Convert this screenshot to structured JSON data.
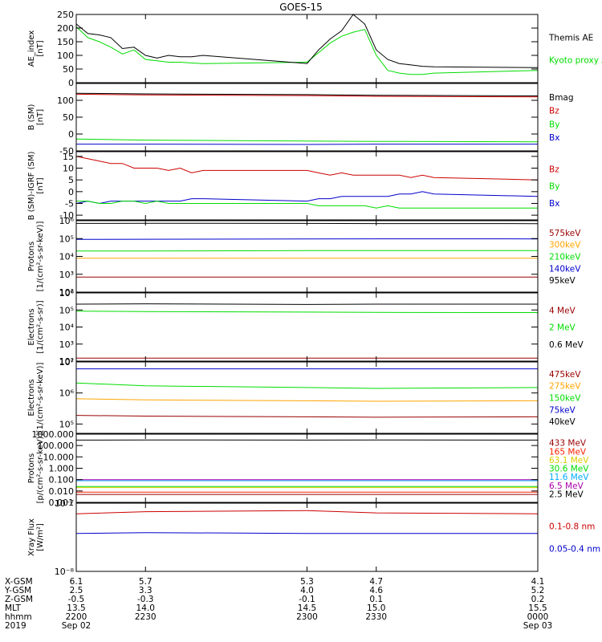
{
  "title": "GOES-15",
  "chart_data": [
    {
      "type": "line",
      "panel": "ae",
      "ylabel": [
        "AE_index",
        "[nT]"
      ],
      "ylim": [
        0,
        250
      ],
      "yticks": [
        0,
        50,
        100,
        150,
        200,
        250
      ],
      "ytick_labels": [
        "0",
        "50",
        "100",
        "150",
        "200",
        "250"
      ],
      "scale": "linear",
      "x": [
        2200,
        2205,
        2210,
        2215,
        2220,
        2225,
        2230,
        2235,
        2240,
        2245,
        2250,
        2255,
        2300,
        2305,
        2310,
        2315,
        2320,
        2325,
        2330,
        2335,
        2340,
        2345,
        2350,
        2355,
        2400
      ],
      "series": [
        {
          "name": "Kyoto proxy AE",
          "color": "#00dd00",
          "values": [
            205,
            165,
            150,
            130,
            105,
            120,
            85,
            80,
            75,
            75,
            72,
            70,
            75,
            110,
            145,
            170,
            185,
            195,
            100,
            45,
            35,
            30,
            30,
            35,
            45
          ]
        },
        {
          "name": "Themis AE",
          "color": "#000000",
          "values": [
            215,
            180,
            175,
            165,
            125,
            130,
            100,
            90,
            100,
            95,
            95,
            100,
            70,
            120,
            160,
            190,
            255,
            215,
            120,
            85,
            70,
            65,
            60,
            58,
            55
          ]
        }
      ]
    },
    {
      "type": "line",
      "panel": "bsm",
      "ylabel": [
        "B (SM)",
        "[nT]"
      ],
      "ylim": [
        -50,
        150
      ],
      "yticks": [
        -50,
        0,
        50,
        100
      ],
      "ytick_labels": [
        "-50",
        "0",
        "50",
        "100"
      ],
      "scale": "linear",
      "x": [
        2200,
        2230,
        2300,
        2330,
        2400
      ],
      "series": [
        {
          "name": "Bx",
          "color": "#0000cc",
          "values": [
            -30,
            -30,
            -31,
            -30,
            -30
          ]
        },
        {
          "name": "By",
          "color": "#00dd00",
          "values": [
            -15,
            -18,
            -21,
            -22,
            -23
          ]
        },
        {
          "name": "Bz",
          "color": "#cc0000",
          "values": [
            118,
            116,
            114,
            112,
            110
          ]
        },
        {
          "name": "Bmag",
          "color": "#000000",
          "values": [
            121,
            119,
            117,
            115,
            113
          ]
        }
      ]
    },
    {
      "type": "line",
      "panel": "bigrf",
      "ylabel": [
        "B (SM)-IGRF (SM)",
        "[nT]"
      ],
      "ylim": [
        -12,
        17
      ],
      "yticks": [
        -10,
        -5,
        0,
        5,
        10,
        15
      ],
      "ytick_labels": [
        "-10",
        "-5",
        "0",
        "5",
        "10",
        "15"
      ],
      "scale": "linear",
      "x": [
        2200,
        2205,
        2210,
        2215,
        2220,
        2225,
        2230,
        2235,
        2240,
        2245,
        2250,
        2255,
        2300,
        2305,
        2310,
        2315,
        2320,
        2325,
        2330,
        2335,
        2340,
        2345,
        2350,
        2355,
        2400
      ],
      "series": [
        {
          "name": "Bx",
          "color": "#0000cc",
          "values": [
            -5,
            -4,
            -5,
            -4,
            -4,
            -4,
            -4,
            -4,
            -4,
            -4,
            -3,
            -3,
            -4,
            -3,
            -3,
            -2,
            -2,
            -2,
            -2,
            -2,
            -1,
            -1,
            0,
            -1,
            -2
          ]
        },
        {
          "name": "By",
          "color": "#00dd00",
          "values": [
            -4,
            -4,
            -5,
            -5,
            -4,
            -4,
            -5,
            -4,
            -5,
            -5,
            -5,
            -5,
            -5,
            -6,
            -6,
            -6,
            -6,
            -6,
            -7,
            -6,
            -7,
            -7,
            -7,
            -7,
            -7
          ]
        },
        {
          "name": "Bz",
          "color": "#cc0000",
          "values": [
            15,
            14,
            13,
            12,
            12,
            10,
            10,
            10,
            9,
            10,
            8,
            9,
            9,
            8,
            7,
            8,
            7,
            7,
            7,
            7,
            7,
            6,
            7,
            6,
            5
          ]
        }
      ]
    },
    {
      "type": "line",
      "panel": "protons1",
      "ylabel": [
        "Protons",
        "[1/(cm²-s-sr-keV)]"
      ],
      "ylim": [
        100,
        1000000
      ],
      "yticks": [
        100,
        1000,
        10000,
        100000,
        1000000
      ],
      "ytick_labels": [
        "10²",
        "10³",
        "10⁴",
        "10⁵",
        "10⁶"
      ],
      "scale": "log",
      "x": [
        2200,
        2230,
        2300,
        2330,
        2400
      ],
      "series": [
        {
          "name": "95keV",
          "color": "#000000",
          "values": [
            700000,
            720000,
            700000,
            690000,
            680000
          ]
        },
        {
          "name": "140keV",
          "color": "#0000cc",
          "values": [
            90000,
            92000,
            95000,
            96000,
            95000
          ]
        },
        {
          "name": "210keV",
          "color": "#00dd00",
          "values": [
            20000,
            20000,
            21000,
            21000,
            21000
          ]
        },
        {
          "name": "300keV",
          "color": "#ffa500",
          "values": [
            8000,
            8000,
            8000,
            8000,
            8000
          ]
        },
        {
          "name": "575keV",
          "color": "#990000",
          "values": [
            700,
            700,
            700,
            700,
            700
          ]
        }
      ]
    },
    {
      "type": "line",
      "panel": "electrons1",
      "ylabel": [
        "Electrons",
        "[1/(cm²-s-sr)]"
      ],
      "ylim": [
        100,
        1000000
      ],
      "yticks": [
        100,
        1000,
        10000,
        100000,
        1000000
      ],
      "ytick_labels": [
        "10²",
        "10³",
        "10⁴",
        "10⁵",
        "10⁶"
      ],
      "scale": "log",
      "x": [
        2200,
        2230,
        2300,
        2330,
        2400
      ],
      "series": [
        {
          "name": "0.6 MeV",
          "color": "#000000",
          "values": [
            220000,
            230000,
            210000,
            220000,
            220000
          ]
        },
        {
          "name": "2 MeV",
          "color": "#00dd00",
          "values": [
            85000,
            80000,
            75000,
            72000,
            70000
          ]
        },
        {
          "name": "4 MeV",
          "color": "#990000",
          "values": [
            150,
            150,
            150,
            150,
            150
          ]
        }
      ]
    },
    {
      "type": "line",
      "panel": "electrons2",
      "ylabel": [
        "Electrons",
        "[1/(cm²-s-sr-keV)]"
      ],
      "ylim": [
        50000,
        10000000
      ],
      "yticks": [
        100000,
        1000000,
        10000000
      ],
      "ytick_labels": [
        "10⁵",
        "10⁶",
        "10⁷"
      ],
      "scale": "log",
      "x": [
        2200,
        2230,
        2300,
        2330,
        2400
      ],
      "series": [
        {
          "name": "40keV",
          "color": "#000000",
          "values": [
            12000000,
            12000000,
            12000000,
            12000000,
            12000000
          ]
        },
        {
          "name": "75keV",
          "color": "#0000cc",
          "values": [
            6000000,
            6000000,
            6000000,
            6000000,
            6000000
          ]
        },
        {
          "name": "150keV",
          "color": "#00dd00",
          "values": [
            2100000,
            1700000,
            1500000,
            1400000,
            1500000
          ]
        },
        {
          "name": "275keV",
          "color": "#ffa500",
          "values": [
            650000,
            600000,
            560000,
            540000,
            560000
          ]
        },
        {
          "name": "475keV",
          "color": "#990000",
          "values": [
            190000,
            180000,
            170000,
            165000,
            170000
          ]
        }
      ]
    },
    {
      "type": "line",
      "panel": "protons2",
      "ylabel": [
        "Protons",
        "[p/(cm²-s-sr-keV)]"
      ],
      "ylim": [
        0.001,
        1000
      ],
      "yticks": [
        0.001,
        0.01,
        0.1,
        1,
        10,
        100,
        1000
      ],
      "ytick_labels": [
        "0.001",
        "0.010",
        "0.100",
        "1.000",
        "10.000",
        "100.000",
        "1000.000"
      ],
      "scale": "log",
      "x": [
        2200,
        2230,
        2300,
        2330,
        2400
      ],
      "series": [
        {
          "name": "2.5 MeV",
          "color": "#000000",
          "values": [
            300,
            310,
            300,
            310,
            300
          ]
        },
        {
          "name": "6.5 MeV",
          "color": "#aa00aa",
          "values": [
            0.1,
            0.1,
            0.1,
            0.1,
            0.1
          ]
        },
        {
          "name": "11.6 MeV",
          "color": "#00aaff",
          "values": [
            0.08,
            0.08,
            0.08,
            0.08,
            0.08
          ]
        },
        {
          "name": "30.6 MeV",
          "color": "#00dd00",
          "values": [
            0.025,
            0.025,
            0.025,
            0.025,
            0.025
          ]
        },
        {
          "name": "63.1 MeV",
          "color": "#ddcc00",
          "values": [
            0.02,
            0.02,
            0.02,
            0.02,
            0.02
          ]
        },
        {
          "name": "165 MeV",
          "color": "#ff2200",
          "values": [
            0.008,
            0.008,
            0.008,
            0.008,
            0.008
          ]
        },
        {
          "name": "433 MeV",
          "color": "#990000",
          "values": [
            0.005,
            0.005,
            0.005,
            0.005,
            0.005
          ]
        }
      ]
    },
    {
      "type": "line",
      "panel": "xray",
      "ylabel": [
        "Xray Flux",
        "[W/m²]"
      ],
      "ylim": [
        1e-08,
        1e-07
      ],
      "yticks": [
        1e-08,
        1e-07
      ],
      "ytick_labels": [
        "10⁻⁸",
        "10⁻⁷"
      ],
      "scale": "log",
      "x": [
        2200,
        2230,
        2300,
        2330,
        2400
      ],
      "series": [
        {
          "name": "0.05-0.4 nm",
          "color": "#0000cc",
          "values": [
            3.6e-08,
            3.7e-08,
            3.6e-08,
            3.6e-08,
            3.6e-08
          ]
        },
        {
          "name": "0.1-0.8 nm",
          "color": "#cc0000",
          "values": [
            7e-08,
            7.5e-08,
            7.8e-08,
            7.2e-08,
            7e-08
          ]
        }
      ]
    }
  ],
  "ephemeris": {
    "rows": [
      {
        "label": "X-GSM",
        "values": [
          "6.1",
          "5.7",
          "5.3",
          "4.7",
          "4.1"
        ]
      },
      {
        "label": "Y-GSM",
        "values": [
          "2.5",
          "3.3",
          "4.0",
          "4.6",
          "5.2"
        ]
      },
      {
        "label": "Z-GSM",
        "values": [
          "-0.5",
          "-0.3",
          "-0.1",
          "0.1",
          "0.2"
        ]
      },
      {
        "label": "MLT",
        "values": [
          "13.5",
          "14.0",
          "14.5",
          "15.0",
          "15.5"
        ]
      },
      {
        "label": "hhmm",
        "values": [
          "2200",
          "2230",
          "2300",
          "2330",
          "0000"
        ]
      },
      {
        "label": "2019",
        "values": [
          "Sep 02",
          "",
          "",
          "",
          "Sep 03"
        ]
      }
    ]
  }
}
